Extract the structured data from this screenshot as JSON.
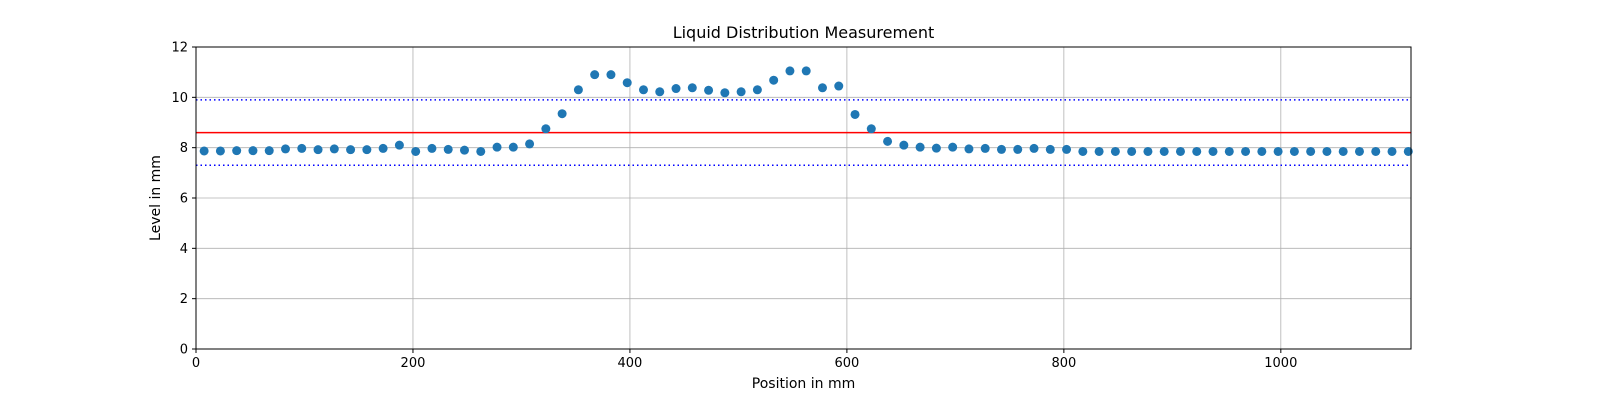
{
  "chart_data": {
    "type": "scatter",
    "title": "Liquid Distribution Measurement",
    "xlabel": "Position in mm",
    "ylabel": "Level in mm",
    "xlim": [
      0,
      1120
    ],
    "ylim": [
      0,
      12
    ],
    "xticks": [
      0,
      200,
      400,
      600,
      800,
      1000
    ],
    "yticks": [
      0,
      2,
      4,
      6,
      8,
      10,
      12
    ],
    "grid": true,
    "series": [
      {
        "marker_color": "#1f77b4",
        "x": [
          7.5,
          22.5,
          37.5,
          52.5,
          67.5,
          82.5,
          97.5,
          112.5,
          127.5,
          142.5,
          157.5,
          172.5,
          187.5,
          202.5,
          217.5,
          232.5,
          247.5,
          262.5,
          277.5,
          292.5,
          307.5,
          322.5,
          337.5,
          352.5,
          367.5,
          382.5,
          397.5,
          412.5,
          427.5,
          442.5,
          457.5,
          472.5,
          487.5,
          502.5,
          517.5,
          532.5,
          547.5,
          562.5,
          577.5,
          592.5,
          607.5,
          622.5,
          637.5,
          652.5,
          667.5,
          682.5,
          697.5,
          712.5,
          727.5,
          742.5,
          757.5,
          772.5,
          787.5,
          802.5,
          817.5,
          832.5,
          847.5,
          862.5,
          877.5,
          892.5,
          907.5,
          922.5,
          937.5,
          952.5,
          967.5,
          982.5,
          997.5,
          1012.5,
          1027.5,
          1042.5,
          1057.5,
          1072.5,
          1087.5,
          1102.5,
          1117.5
        ],
        "y": [
          7.87,
          7.87,
          7.88,
          7.88,
          7.88,
          7.95,
          7.97,
          7.92,
          7.95,
          7.92,
          7.92,
          7.97,
          8.1,
          7.85,
          7.97,
          7.93,
          7.9,
          7.85,
          8.02,
          8.02,
          8.15,
          8.75,
          9.35,
          10.3,
          10.9,
          10.9,
          10.58,
          10.3,
          10.22,
          10.35,
          10.38,
          10.28,
          10.18,
          10.22,
          10.3,
          10.68,
          11.05,
          11.05,
          10.38,
          10.45,
          9.32,
          8.75,
          8.25,
          8.1,
          8.02,
          7.98,
          8.02,
          7.95,
          7.97,
          7.93,
          7.93,
          7.97,
          7.93,
          7.93,
          7.85,
          7.85,
          7.85,
          7.85,
          7.85,
          7.85,
          7.85,
          7.85,
          7.85,
          7.85,
          7.85,
          7.85,
          7.85,
          7.85,
          7.85,
          7.85,
          7.85,
          7.85,
          7.85,
          7.85,
          7.85
        ]
      }
    ],
    "reference_lines": [
      {
        "y": 8.6,
        "color": "#ff0000",
        "style": "solid"
      },
      {
        "y": 9.9,
        "color": "#0000ff",
        "style": "dotted"
      },
      {
        "y": 7.3,
        "color": "#0000ff",
        "style": "dotted"
      }
    ]
  }
}
